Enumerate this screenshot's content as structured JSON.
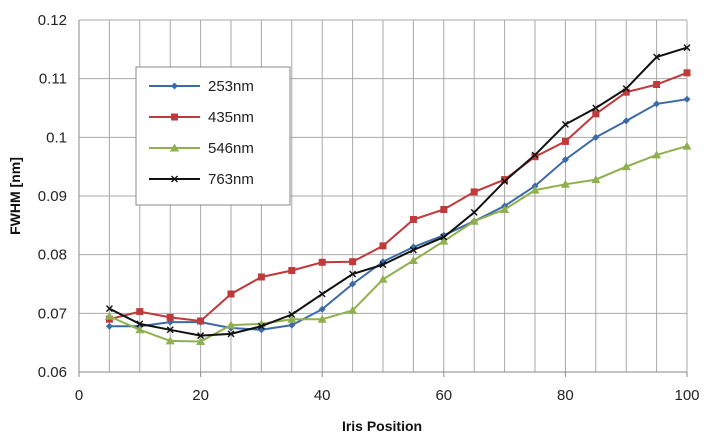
{
  "chart_data": {
    "type": "line",
    "title": "",
    "xlabel": "Iris Position",
    "ylabel": "FWHM [nm]",
    "xlim": [
      0,
      100
    ],
    "ylim": [
      0.06,
      0.12
    ],
    "x_ticks": [
      0,
      20,
      40,
      60,
      80,
      100
    ],
    "y_ticks": [
      0.06,
      0.07,
      0.08,
      0.09,
      0.1,
      0.11,
      0.12
    ],
    "y_tick_labels": [
      "0.06",
      "0.07",
      "0.08",
      "0.09",
      "0.1",
      "0.11",
      "0.12"
    ],
    "x_grid_step": 5,
    "grid": true,
    "legend_position": "upper-left",
    "x": [
      5,
      10,
      15,
      20,
      25,
      30,
      35,
      40,
      45,
      50,
      55,
      60,
      65,
      70,
      75,
      80,
      85,
      90,
      95,
      100
    ],
    "series": [
      {
        "name": "253nm",
        "color": "#3c6aa6",
        "marker": "diamond",
        "values": [
          0.0678,
          0.0678,
          0.0685,
          0.0685,
          0.0675,
          0.0672,
          0.068,
          0.0707,
          0.075,
          0.0788,
          0.0813,
          0.0833,
          0.0857,
          0.0883,
          0.0917,
          0.0962,
          0.1,
          0.1028,
          0.1057,
          0.1065
        ]
      },
      {
        "name": "435nm",
        "color": "#c0393b",
        "marker": "square",
        "values": [
          0.069,
          0.0703,
          0.0693,
          0.0687,
          0.0733,
          0.0762,
          0.0773,
          0.0787,
          0.0788,
          0.0815,
          0.086,
          0.0877,
          0.0907,
          0.0928,
          0.0967,
          0.0993,
          0.104,
          0.1077,
          0.109,
          0.111
        ]
      },
      {
        "name": "546nm",
        "color": "#8fb04e",
        "marker": "triangle",
        "values": [
          0.0695,
          0.0672,
          0.0653,
          0.0652,
          0.068,
          0.0682,
          0.069,
          0.069,
          0.0705,
          0.0758,
          0.079,
          0.0823,
          0.0857,
          0.0877,
          0.091,
          0.092,
          0.0928,
          0.095,
          0.097,
          0.0985
        ]
      },
      {
        "name": "763nm",
        "color": "#111111",
        "marker": "cross",
        "values": [
          0.0708,
          0.0682,
          0.0672,
          0.0662,
          0.0665,
          0.0678,
          0.0698,
          0.0733,
          0.0767,
          0.0783,
          0.0808,
          0.083,
          0.0872,
          0.0925,
          0.097,
          0.1022,
          0.105,
          0.1083,
          0.1137,
          0.1153
        ]
      }
    ]
  }
}
